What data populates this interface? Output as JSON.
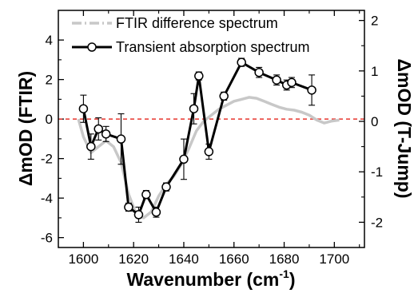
{
  "chart_data": {
    "type": "line",
    "xlabel": "Wavenumber (cm",
    "xlabel_sup": "-1",
    "xlabel_close": ")",
    "ylabel_left": "ΔmOD (FTIR)",
    "ylabel_right": "ΔmOD (T-Jump)",
    "xlim": [
      1590,
      1712
    ],
    "ylim_left": [
      -6.5,
      5.5
    ],
    "ylim_right": [
      -2.5,
      2.2
    ],
    "x_ticks": [
      "1600",
      "1620",
      "1640",
      "1660",
      "1680",
      "1700"
    ],
    "y_left_ticks": [
      "4",
      "2",
      "0",
      "-2",
      "-4",
      "-6"
    ],
    "y_right_ticks": [
      "2",
      "1",
      "0",
      "-1",
      "-2"
    ],
    "zero_line": {
      "y": 0,
      "color": "#e8362e",
      "style": "dashed"
    },
    "legend_position": "top-right",
    "series": [
      {
        "name": "FTIR difference spectrum",
        "axis": "left",
        "color": "#c8c8c8",
        "style": "dash-dot",
        "x": [
          1598,
          1600,
          1603,
          1606,
          1609,
          1612,
          1615,
          1618,
          1621,
          1624,
          1627,
          1630,
          1633,
          1636,
          1639,
          1642,
          1645,
          1648,
          1651,
          1654,
          1657,
          1660,
          1663,
          1666,
          1669,
          1672,
          1675,
          1678,
          1681,
          1684,
          1687,
          1690,
          1693,
          1696,
          1699,
          1702
        ],
        "y": [
          0.0,
          -0.9,
          -1.7,
          -1.4,
          -1.1,
          -1.4,
          -2.2,
          -3.8,
          -4.8,
          -5.0,
          -4.7,
          -3.9,
          -3.3,
          -2.9,
          -2.3,
          -1.5,
          -0.6,
          -0.1,
          0.2,
          0.5,
          0.7,
          0.9,
          1.0,
          1.1,
          1.05,
          0.9,
          0.75,
          0.6,
          0.5,
          0.45,
          0.35,
          0.2,
          -0.05,
          -0.2,
          -0.1,
          -0.05
        ]
      },
      {
        "name": "Transient absorption spectrum",
        "axis": "right",
        "color": "#000000",
        "style": "solid-markers",
        "x": [
          1600,
          1603,
          1606,
          1609,
          1615,
          1618,
          1622,
          1625,
          1629,
          1633,
          1640,
          1644,
          1646,
          1650,
          1656,
          1663,
          1670,
          1677,
          1681,
          1683,
          1691
        ],
        "y": [
          0.25,
          -0.5,
          -0.15,
          -0.25,
          -0.35,
          -1.7,
          -1.85,
          -1.45,
          -1.8,
          -1.3,
          -0.75,
          0.25,
          0.9,
          -0.6,
          0.5,
          1.17,
          0.97,
          0.82,
          0.72,
          0.77,
          0.62
        ],
        "err": [
          0.27,
          0.25,
          0.22,
          0.15,
          0.5,
          0.08,
          0.15,
          0.08,
          0.1,
          0.08,
          0.4,
          0.3,
          0.08,
          0.15,
          0.08,
          0.08,
          0.1,
          0.1,
          0.1,
          0.1,
          0.3
        ]
      }
    ]
  }
}
